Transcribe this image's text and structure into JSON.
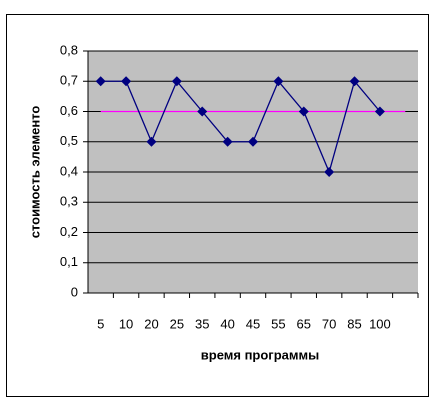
{
  "chart_data": {
    "type": "line",
    "x_label": "время программы",
    "y_label": "стоимость элементо",
    "categories": [
      "5",
      "10",
      "20",
      "25",
      "35",
      "40",
      "45",
      "55",
      "65",
      "70",
      "85",
      "100",
      null
    ],
    "series": [
      {
        "color": "#000080",
        "marker": "diamond",
        "values": [
          0.7,
          0.7,
          0.5,
          0.7,
          0.6,
          0.5,
          0.5,
          0.7,
          0.6,
          0.4,
          0.7,
          0.6,
          null
        ]
      },
      {
        "color": "#ff00ff",
        "values": [
          0.6,
          0.6,
          0.6,
          0.6,
          0.6,
          0.6,
          0.6,
          0.6,
          0.6,
          0.6,
          0.6,
          0.6,
          0.6
        ]
      }
    ],
    "ylim": [
      0,
      0.8
    ],
    "yticks": [
      0,
      {
        "value": 0.1,
        "label": "0,1"
      },
      {
        "value": 0.2,
        "label": "0,2"
      },
      {
        "value": 0.3,
        "label": "0,3"
      },
      {
        "value": 0.4,
        "label": "0,4"
      },
      {
        "value": 0.5,
        "label": "0,5"
      },
      {
        "value": 0.6,
        "label": "0,6"
      },
      {
        "value": 0.7,
        "label": "0,7"
      },
      {
        "value": 0.8,
        "label": "0,8"
      }
    ],
    "grid": true,
    "plot_background": "#c0c0c0"
  }
}
